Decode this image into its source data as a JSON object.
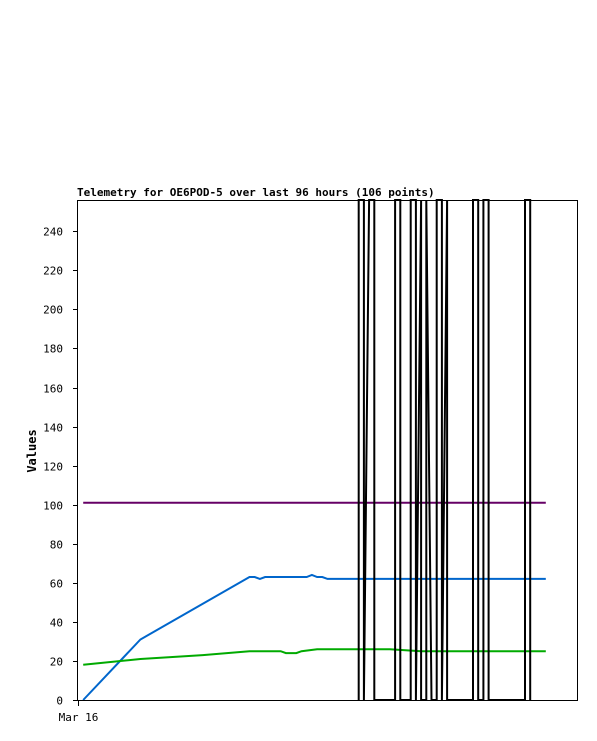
{
  "chart_data": {
    "type": "line",
    "title": "Telemetry for OE6POD-5 over last 96 hours (106 points)",
    "xlabel": "",
    "ylabel": "Values",
    "ylim": [
      0,
      256
    ],
    "yticks": [
      0,
      20,
      40,
      60,
      80,
      100,
      120,
      140,
      160,
      180,
      200,
      220,
      240
    ],
    "xticks": [
      {
        "x": 0,
        "label": "Mar 16"
      }
    ],
    "xlim": [
      0,
      96
    ],
    "grid": false,
    "legend": "none",
    "series": [
      {
        "color": "#660066",
        "points": [
          [
            1,
            101
          ],
          [
            22,
            101
          ],
          [
            44,
            101
          ],
          [
            54,
            101
          ],
          [
            60,
            101
          ],
          [
            66,
            101
          ],
          [
            72,
            101
          ],
          [
            78,
            101
          ],
          [
            84,
            101
          ],
          [
            90,
            101
          ]
        ]
      },
      {
        "color": "#0066cc",
        "points": [
          [
            1,
            0
          ],
          [
            12,
            31
          ],
          [
            33,
            63
          ],
          [
            34,
            63
          ],
          [
            35,
            62
          ],
          [
            36,
            63
          ],
          [
            40,
            63
          ],
          [
            44,
            63
          ],
          [
            45,
            64
          ],
          [
            46,
            63
          ],
          [
            47,
            63
          ],
          [
            48,
            62
          ],
          [
            54,
            62
          ],
          [
            60,
            62
          ],
          [
            66,
            62
          ],
          [
            72,
            62
          ],
          [
            78,
            62
          ],
          [
            84,
            62
          ],
          [
            90,
            62
          ]
        ]
      },
      {
        "color": "#00aa00",
        "points": [
          [
            1,
            18
          ],
          [
            12,
            21
          ],
          [
            24,
            23
          ],
          [
            33,
            25
          ],
          [
            39,
            25
          ],
          [
            40,
            24
          ],
          [
            42,
            24
          ],
          [
            43,
            25
          ],
          [
            46,
            26
          ],
          [
            54,
            26
          ],
          [
            60,
            26
          ],
          [
            66,
            25
          ],
          [
            72,
            25
          ],
          [
            78,
            25
          ],
          [
            84,
            25
          ],
          [
            90,
            25
          ]
        ]
      },
      {
        "color": "#000000",
        "points": [
          [
            54,
            0
          ],
          [
            54,
            256
          ],
          [
            55,
            256
          ],
          [
            55,
            0
          ],
          [
            56,
            256
          ],
          [
            57,
            256
          ],
          [
            57,
            0
          ],
          [
            61,
            0
          ],
          [
            61,
            256
          ],
          [
            62,
            256
          ],
          [
            62,
            0
          ],
          [
            64,
            0
          ],
          [
            64,
            256
          ],
          [
            65,
            256
          ],
          [
            65,
            0
          ],
          [
            66,
            256
          ],
          [
            66,
            0
          ],
          [
            67,
            0
          ],
          [
            67,
            256
          ],
          [
            68,
            0
          ],
          [
            69,
            0
          ],
          [
            69,
            256
          ],
          [
            70,
            256
          ],
          [
            70,
            0
          ],
          [
            71,
            256
          ],
          [
            71,
            0
          ],
          [
            76,
            0
          ],
          [
            76,
            256
          ],
          [
            77,
            256
          ],
          [
            77,
            0
          ],
          [
            78,
            0
          ],
          [
            78,
            256
          ],
          [
            79,
            256
          ],
          [
            79,
            0
          ],
          [
            86,
            0
          ],
          [
            86,
            256
          ],
          [
            87,
            256
          ],
          [
            87,
            0
          ]
        ]
      }
    ]
  }
}
